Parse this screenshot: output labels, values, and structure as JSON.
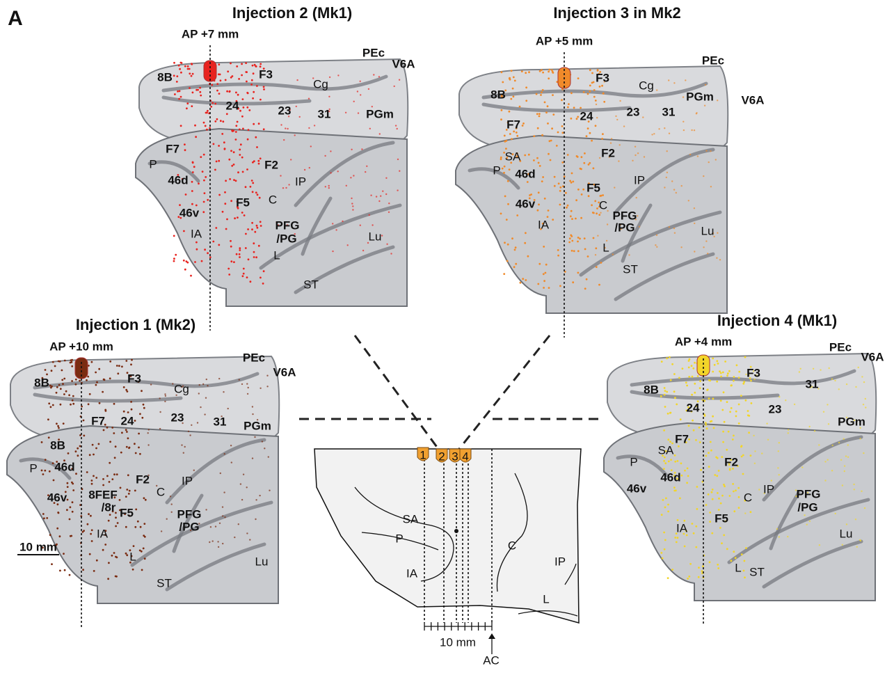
{
  "panel_label": "A",
  "panels": [
    {
      "title": "Injection 2 (Mk1)",
      "ap": "AP +7 mm",
      "areas": [
        "8B",
        "F3",
        "Cg",
        "PEc",
        "V6A",
        "24",
        "23",
        "31",
        "PGm",
        "F7",
        "F2",
        "P",
        "46d",
        "IP",
        "C",
        "F5",
        "46v",
        "IA",
        "PFG",
        "/PG",
        "Lu",
        "L",
        "ST"
      ]
    },
    {
      "title": "Injection 3 in Mk2",
      "ap": "AP +5 mm",
      "areas": [
        "8B",
        "F3",
        "Cg",
        "PEc",
        "PGm",
        "V6A",
        "24",
        "23",
        "31",
        "F7",
        "SA",
        "F2",
        "P",
        "46d",
        "IP",
        "F5",
        "46v",
        "C",
        "PFG",
        "/PG",
        "IA",
        "Lu",
        "L",
        "ST"
      ]
    },
    {
      "title": "Injection 1 (Mk2)",
      "ap": "AP +10 mm",
      "scale": "10 mm",
      "areas": [
        "8B",
        "F3",
        "Cg",
        "PEc",
        "V6A",
        "23",
        "31",
        "PGm",
        "F7",
        "24",
        "8B",
        "P",
        "46d",
        "F2",
        "IP",
        "46v",
        "8FEF",
        "/8r",
        "C",
        "F5",
        "PFG",
        "/PG",
        "IA",
        "L",
        "Lu",
        "ST"
      ]
    },
    {
      "title": "Injection 4 (Mk1)",
      "ap": "AP +4 mm",
      "areas": [
        "8B",
        "F3",
        "PEc",
        "V6A",
        "31",
        "24",
        "23",
        "PGm",
        "F7",
        "SA",
        "F2",
        "P",
        "46d",
        "46v",
        "IP",
        "PFG",
        "/PG",
        "C",
        "IA",
        "F5",
        "Lu",
        "L",
        "ST"
      ]
    }
  ],
  "schematic": {
    "injections": [
      "1",
      "2",
      "3",
      "4"
    ],
    "areas": [
      "SA",
      "P",
      "IA",
      "C",
      "IP",
      "L"
    ],
    "scale": "10 mm",
    "marker": "AC"
  }
}
